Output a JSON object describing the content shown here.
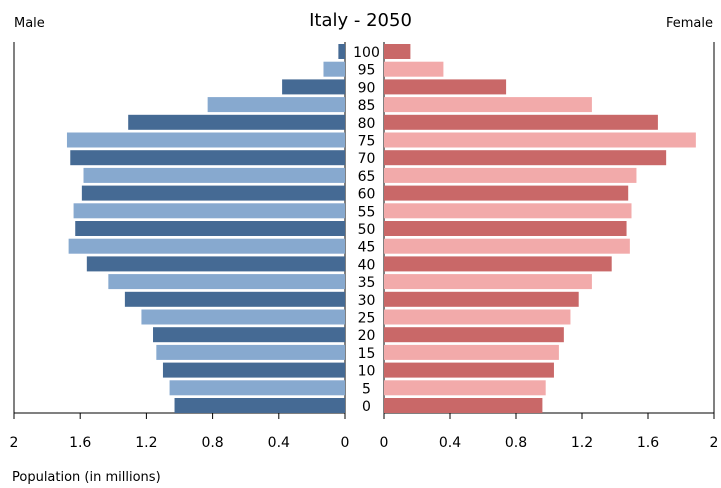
{
  "chart_data": {
    "type": "bar",
    "orientation": "horizontal",
    "title": "Italy - 2050",
    "left_label": "Male",
    "right_label": "Female",
    "xlabel": "Population (in millions)",
    "xlim": [
      0,
      2
    ],
    "xticks": [
      "2",
      "1.6",
      "1.2",
      "0.8",
      "0.4",
      "0",
      "0",
      "0.4",
      "0.8",
      "1.2",
      "1.6",
      "2"
    ],
    "categories": [
      "100",
      "95",
      "90",
      "85",
      "80",
      "75",
      "70",
      "65",
      "60",
      "55",
      "50",
      "45",
      "40",
      "35",
      "30",
      "25",
      "20",
      "15",
      "10",
      "5",
      "0"
    ],
    "series": [
      {
        "name": "Male",
        "values": [
          0.04,
          0.13,
          0.38,
          0.83,
          1.31,
          1.68,
          1.66,
          1.58,
          1.59,
          1.64,
          1.63,
          1.67,
          1.56,
          1.43,
          1.33,
          1.23,
          1.16,
          1.14,
          1.1,
          1.06,
          1.03
        ],
        "colors": [
          "#456a94",
          "#87a9cf"
        ]
      },
      {
        "name": "Female",
        "values": [
          0.16,
          0.36,
          0.74,
          1.26,
          1.66,
          1.89,
          1.71,
          1.53,
          1.48,
          1.5,
          1.47,
          1.49,
          1.38,
          1.26,
          1.18,
          1.13,
          1.09,
          1.06,
          1.03,
          0.98,
          0.96
        ],
        "colors": [
          "#c96868",
          "#f2aaaa"
        ]
      }
    ],
    "grid": false,
    "legend": "none"
  }
}
